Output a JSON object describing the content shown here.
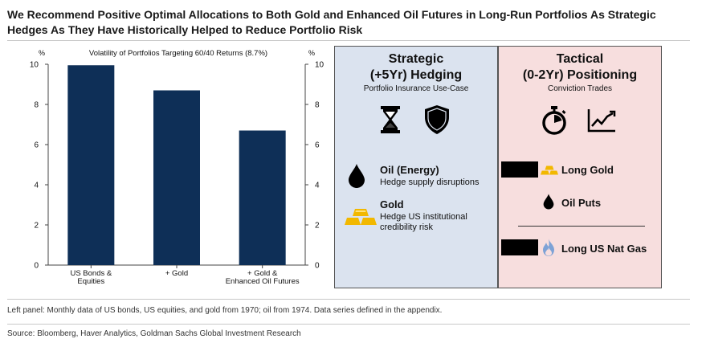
{
  "title": "We Recommend Positive Optimal Allocations to Both Gold and Enhanced Oil Futures in Long-Run Portfolios As Strategic Hedges As They Have Historically Helped to Reduce Portfolio Risk",
  "chart_data": {
    "type": "bar",
    "title": "Volatility of Portfolios Targeting 60/40 Returns (8.7%)",
    "unit_left": "%",
    "unit_right": "%",
    "categories": [
      "US Bonds & Equities",
      "+ Gold",
      "+ Gold & Enhanced Oil Futures"
    ],
    "category_lines": [
      [
        "US Bonds &",
        "Equities"
      ],
      [
        "+ Gold"
      ],
      [
        "+ Gold &",
        "Enhanced Oil Futures"
      ]
    ],
    "values": [
      9.95,
      8.7,
      6.7
    ],
    "ylim": [
      0,
      10
    ],
    "yticks": [
      "0",
      "2",
      "4",
      "6",
      "8",
      "10"
    ],
    "bar_color": "#0e2f57",
    "grid": false
  },
  "strategic": {
    "heading_line1": "Strategic",
    "heading_line2": "(+5Yr) Hedging",
    "subtitle": "Portfolio Insurance Use-Case",
    "icons": [
      "hourglass-icon",
      "shield-icon"
    ],
    "items": [
      {
        "icon": "oil-drop-icon",
        "title": "Oil (Energy)",
        "desc": [
          "Hedge supply disruptions"
        ]
      },
      {
        "icon": "gold-bars-icon",
        "title": "Gold",
        "desc": [
          "Hedge US institutional",
          "credibility risk"
        ]
      }
    ]
  },
  "tactical": {
    "heading_line1": "Tactical",
    "heading_line2": "(0-2Yr) Positioning",
    "subtitle": "Conviction Trades",
    "icons": [
      "stopwatch-icon",
      "line-chart-icon"
    ],
    "items": [
      {
        "icon": "gold-bars-icon",
        "label": "Long Gold"
      },
      {
        "icon": "oil-drop-icon",
        "label": "Oil Puts"
      },
      {
        "icon": "flame-icon",
        "label": "Long US Nat Gas"
      }
    ]
  },
  "colors": {
    "blue_panel": "#dbe3ef",
    "pink_panel": "#f7dede",
    "gold": "#f2b800",
    "navy": "#0e2f57"
  },
  "footnote": "Left panel: Monthly data of US bonds, US equities, and gold from 1970; oil from 1974. Data series defined in the appendix.",
  "source": "Source: Bloomberg, Haver Analytics, Goldman Sachs Global Investment Research"
}
